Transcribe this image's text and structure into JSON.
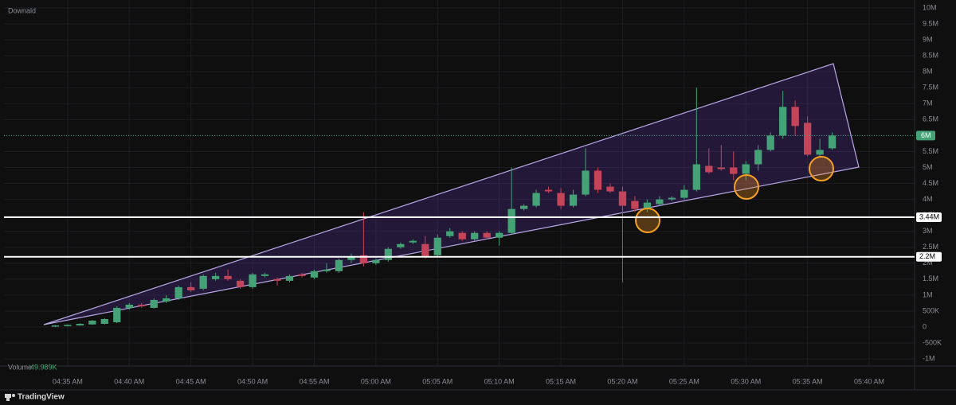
{
  "chart_data": {
    "type": "candlestick",
    "title": "Downald",
    "x": [
      274,
      275,
      276,
      277,
      278,
      279,
      280,
      281,
      282,
      283,
      284,
      285,
      286,
      287,
      288,
      289,
      290,
      291,
      292,
      293,
      294,
      295,
      296,
      297,
      298,
      299,
      300,
      301,
      302,
      303,
      304,
      305,
      306,
      307,
      308,
      309,
      310,
      311,
      312,
      313,
      314,
      315,
      316,
      317,
      318,
      319,
      320,
      321,
      322,
      323,
      324,
      325,
      326,
      327,
      328,
      329,
      330,
      331,
      332,
      333,
      334,
      335,
      336,
      337
    ],
    "open": [
      20000,
      30000,
      50000,
      80000,
      100000,
      150000,
      600000,
      700000,
      600000,
      800000,
      900000,
      1250000,
      1200000,
      1500000,
      1600000,
      1450000,
      1250000,
      1600000,
      1500000,
      1450000,
      1650000,
      1550000,
      1750000,
      1750000,
      2100000,
      2250000,
      2000000,
      2100000,
      2500000,
      2650000,
      2600000,
      2250000,
      2850000,
      2950000,
      2750000,
      2950000,
      2800000,
      2950000,
      3700000,
      3800000,
      4300000,
      4200000,
      3800000,
      4150000,
      4900000,
      4400000,
      4250000,
      3950000,
      3700000,
      3850000,
      4000000,
      4050000,
      4300000,
      5050000,
      5000000,
      5000000,
      4800000,
      5100000,
      5550000,
      6000000,
      6900000,
      6400000,
      5400000,
      5600000
    ],
    "high": [
      60000,
      80000,
      120000,
      220000,
      280000,
      650000,
      750000,
      750000,
      900000,
      1000000,
      1300000,
      1400000,
      1650000,
      1700000,
      1800000,
      1500000,
      1700000,
      1700000,
      1550000,
      1650000,
      1700000,
      1800000,
      2000000,
      2150000,
      2300000,
      3600000,
      2150000,
      2500000,
      2650000,
      2750000,
      2850000,
      2900000,
      3100000,
      3000000,
      3000000,
      3000000,
      3000000,
      5000000,
      3850000,
      4300000,
      4400000,
      4350000,
      4300000,
      5600000,
      5000000,
      4500000,
      4400000,
      4100000,
      4000000,
      4100000,
      4100000,
      4450000,
      7500000,
      5600000,
      5700000,
      5500000,
      5200000,
      5700000,
      6100000,
      7400000,
      7100000,
      6600000,
      5900000,
      6100000
    ],
    "low": [
      0,
      20000,
      40000,
      70000,
      80000,
      120000,
      550000,
      600000,
      580000,
      750000,
      850000,
      1100000,
      1150000,
      1450000,
      1450000,
      1200000,
      1200000,
      1550000,
      1300000,
      1400000,
      1550000,
      1500000,
      1700000,
      1700000,
      2000000,
      1900000,
      1950000,
      2050000,
      2450000,
      2600000,
      2150000,
      2200000,
      2800000,
      2700000,
      2700000,
      2750000,
      2550000,
      2900000,
      3650000,
      3750000,
      4200000,
      3700000,
      3750000,
      4100000,
      4200000,
      4200000,
      1400000,
      3600000,
      3600000,
      3800000,
      3950000,
      4000000,
      4250000,
      4800000,
      4900000,
      4600000,
      4600000,
      4900000,
      5500000,
      5900000,
      6000000,
      5350000,
      5350000,
      5550000
    ],
    "close": [
      50000,
      70000,
      100000,
      200000,
      250000,
      600000,
      700000,
      650000,
      850000,
      900000,
      1250000,
      1150000,
      1600000,
      1600000,
      1500000,
      1250000,
      1650000,
      1650000,
      1450000,
      1600000,
      1600000,
      1750000,
      1800000,
      2100000,
      2200000,
      2000000,
      2100000,
      2450000,
      2600000,
      2700000,
      2200000,
      2800000,
      3000000,
      2750000,
      2950000,
      2800000,
      2950000,
      3700000,
      3800000,
      4200000,
      4250000,
      3800000,
      4150000,
      4900000,
      4300000,
      4250000,
      3800000,
      3700000,
      3900000,
      4000000,
      4050000,
      4300000,
      5100000,
      4850000,
      4950000,
      4800000,
      5100000,
      5550000,
      6000000,
      6900000,
      6300000,
      5400000,
      5550000,
      6000000
    ],
    "up_color": "#44a276",
    "down_color": "#c4445a",
    "xlim": [
      269.84,
      343.68
    ],
    "xticks": [
      {
        "value": 275,
        "label": "04:35 AM"
      },
      {
        "value": 280,
        "label": "04:40 AM"
      },
      {
        "value": 285,
        "label": "04:45 AM"
      },
      {
        "value": 290,
        "label": "04:50 AM"
      },
      {
        "value": 295,
        "label": "04:55 AM"
      },
      {
        "value": 300,
        "label": "05:00 AM"
      },
      {
        "value": 305,
        "label": "05:05 AM"
      },
      {
        "value": 310,
        "label": "05:10 AM"
      },
      {
        "value": 315,
        "label": "05:15 AM"
      },
      {
        "value": 320,
        "label": "05:20 AM"
      },
      {
        "value": 325,
        "label": "05:25 AM"
      },
      {
        "value": 330,
        "label": "05:30 AM"
      },
      {
        "value": 335,
        "label": "05:35 AM"
      },
      {
        "value": 340,
        "label": "05:40 AM"
      }
    ],
    "ylim": [
      -1222000,
      10249000
    ],
    "yticks": [
      {
        "value": 10000000,
        "label": "10M"
      },
      {
        "value": 9500000,
        "label": "9.5M"
      },
      {
        "value": 9000000,
        "label": "9M"
      },
      {
        "value": 8500000,
        "label": "8.5M"
      },
      {
        "value": 8000000,
        "label": "8M"
      },
      {
        "value": 7500000,
        "label": "7.5M"
      },
      {
        "value": 7000000,
        "label": "7M"
      },
      {
        "value": 6500000,
        "label": "6.5M"
      },
      {
        "value": 6000000,
        "label": "6M"
      },
      {
        "value": 5500000,
        "label": "5.5M"
      },
      {
        "value": 5000000,
        "label": "5M"
      },
      {
        "value": 4500000,
        "label": "4.5M"
      },
      {
        "value": 4000000,
        "label": "4M"
      },
      {
        "value": 3500000,
        "label": "3.5M"
      },
      {
        "value": 3000000,
        "label": "3M"
      },
      {
        "value": 2500000,
        "label": "2.5M"
      },
      {
        "value": 2000000,
        "label": "2M"
      },
      {
        "value": 1500000,
        "label": "1.5M"
      },
      {
        "value": 1000000,
        "label": "1M"
      },
      {
        "value": 500000,
        "label": "500K"
      },
      0,
      {
        "value": -500000,
        "label": "-500K"
      },
      {
        "value": -1000000,
        "label": "-1M"
      }
    ],
    "grid": true,
    "levels": [
      {
        "value": 3440000,
        "label": "3.44M"
      },
      {
        "value": 2200000,
        "label": "2.2M"
      }
    ],
    "last_price": {
      "value": 6000000,
      "label": "6M"
    },
    "volume_label": "Volume",
    "volume_value": "49.989K",
    "brand": "TradingView"
  }
}
